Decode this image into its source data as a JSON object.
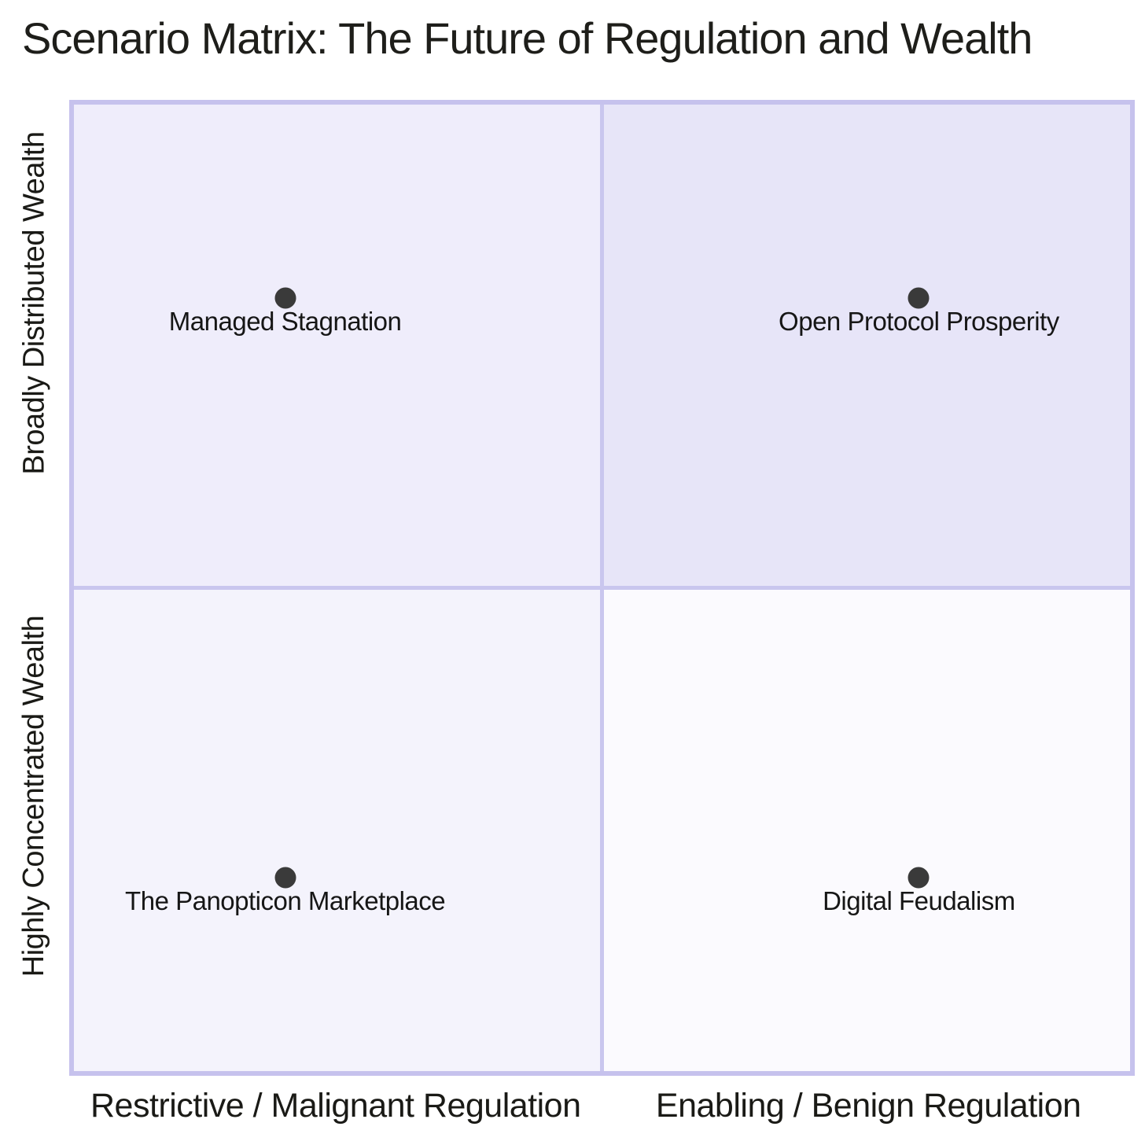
{
  "title": "Scenario Matrix: The Future of Regulation and Wealth",
  "chart_data": {
    "type": "scatter",
    "title": "Scenario Matrix: The Future of Regulation and Wealth",
    "x_axis": {
      "left_label": "Restrictive / Malignant Regulation",
      "right_label": "Enabling / Benign Regulation"
    },
    "y_axis": {
      "top_label": "Broadly Distributed Wealth",
      "bottom_label": "Highly Concentrated Wealth"
    },
    "points": [
      {
        "label": "Managed Stagnation",
        "x": 0.2,
        "y": 0.8,
        "quadrant": "top-left"
      },
      {
        "label": "Open Protocol Prosperity",
        "x": 0.8,
        "y": 0.8,
        "quadrant": "top-right"
      },
      {
        "label": "The Panopticon Marketplace",
        "x": 0.2,
        "y": 0.2,
        "quadrant": "bottom-left"
      },
      {
        "label": "Digital Feudalism",
        "x": 0.8,
        "y": 0.2,
        "quadrant": "bottom-right"
      }
    ],
    "layout": {
      "grid": "2x2 quadrants",
      "legend": "none",
      "axis_range": [
        0,
        1
      ]
    },
    "colors": {
      "point_color": "#3a3a3a",
      "border_color": "#c6c2ed",
      "divider_color": "#c9c6ee",
      "text_color": "#1a1a16",
      "quadrant_colors": {
        "top_left": "#efedfb",
        "top_right": "#e7e5f8",
        "bottom_left": "#f4f3fc",
        "bottom_right": "#fbfafe"
      }
    }
  }
}
